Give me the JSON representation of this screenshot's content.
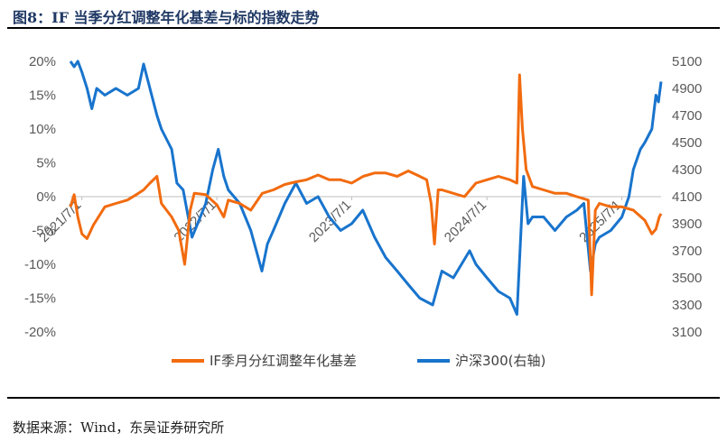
{
  "header": {
    "title": "图8：IF 当季分红调整年化基差与标的指数走势"
  },
  "footer": {
    "source": "数据来源：Wind，东吴证券研究所"
  },
  "colors": {
    "basis": "#F26B0F",
    "index": "#1874CD",
    "tick_text": "#595959",
    "title": "#1F3864"
  },
  "chart_data": {
    "type": "line",
    "title": "图8：IF 当季分红调整年化基差与标的指数走势",
    "x_range": [
      "2021-05-31",
      "2025-10-15"
    ],
    "x_ticks": [
      "2021/7/1",
      "2022/7/1",
      "2023/7/1",
      "2024/7/1",
      "2025/7/1"
    ],
    "y_left": {
      "ylim": [
        -0.2,
        0.2
      ],
      "ticks": [
        "20%",
        "15%",
        "10%",
        "5%",
        "0%",
        "-5%",
        "-10%",
        "-15%",
        "-20%"
      ]
    },
    "y_right": {
      "ylim": [
        3100,
        5100
      ],
      "ticks": [
        "5100",
        "4900",
        "4700",
        "4500",
        "4300",
        "4100",
        "3900",
        "3700",
        "3500",
        "3300",
        "3100"
      ]
    },
    "legend": "bottom-center",
    "grid": false,
    "series": [
      {
        "name": "IF季月分红调整年化基差",
        "axis": "left",
        "points": [
          [
            "2021-05-31",
            -0.015
          ],
          [
            "2021-06-10",
            0.003
          ],
          [
            "2021-06-20",
            -0.03
          ],
          [
            "2021-07-01",
            -0.055
          ],
          [
            "2021-07-15",
            -0.062
          ],
          [
            "2021-08-01",
            -0.042
          ],
          [
            "2021-09-01",
            -0.015
          ],
          [
            "2021-10-01",
            -0.01
          ],
          [
            "2021-11-01",
            -0.005
          ],
          [
            "2021-12-01",
            0.005
          ],
          [
            "2021-12-15",
            0.01
          ],
          [
            "2022-01-01",
            0.02
          ],
          [
            "2022-01-20",
            0.03
          ],
          [
            "2022-02-01",
            -0.01
          ],
          [
            "2022-03-01",
            -0.03
          ],
          [
            "2022-03-20",
            -0.05
          ],
          [
            "2022-04-05",
            -0.1
          ],
          [
            "2022-04-20",
            -0.02
          ],
          [
            "2022-05-01",
            0.005
          ],
          [
            "2022-06-01",
            0.003
          ],
          [
            "2022-07-01",
            -0.012
          ],
          [
            "2022-07-20",
            -0.03
          ],
          [
            "2022-08-01",
            -0.005
          ],
          [
            "2022-09-01",
            -0.01
          ],
          [
            "2022-10-01",
            -0.02
          ],
          [
            "2022-11-01",
            0.005
          ],
          [
            "2022-12-01",
            0.01
          ],
          [
            "2023-01-01",
            0.018
          ],
          [
            "2023-02-01",
            0.022
          ],
          [
            "2023-03-01",
            0.025
          ],
          [
            "2023-04-01",
            0.032
          ],
          [
            "2023-05-01",
            0.025
          ],
          [
            "2023-06-01",
            0.025
          ],
          [
            "2023-07-01",
            0.02
          ],
          [
            "2023-08-01",
            0.03
          ],
          [
            "2023-09-01",
            0.035
          ],
          [
            "2023-10-01",
            0.035
          ],
          [
            "2023-11-01",
            0.03
          ],
          [
            "2023-12-01",
            0.038
          ],
          [
            "2024-01-01",
            0.03
          ],
          [
            "2024-01-20",
            0.025
          ],
          [
            "2024-02-01",
            -0.01
          ],
          [
            "2024-02-10",
            -0.07
          ],
          [
            "2024-02-20",
            0.01
          ],
          [
            "2024-03-01",
            0.01
          ],
          [
            "2024-04-01",
            0.005
          ],
          [
            "2024-05-01",
            0.0
          ],
          [
            "2024-06-01",
            0.02
          ],
          [
            "2024-07-01",
            0.025
          ],
          [
            "2024-08-01",
            0.03
          ],
          [
            "2024-09-01",
            0.025
          ],
          [
            "2024-09-20",
            0.02
          ],
          [
            "2024-09-27",
            0.18
          ],
          [
            "2024-10-05",
            0.1
          ],
          [
            "2024-10-15",
            0.04
          ],
          [
            "2024-11-01",
            0.015
          ],
          [
            "2024-12-01",
            0.01
          ],
          [
            "2025-01-01",
            0.005
          ],
          [
            "2025-02-01",
            0.005
          ],
          [
            "2025-03-01",
            0.0
          ],
          [
            "2025-04-01",
            -0.005
          ],
          [
            "2025-04-10",
            -0.145
          ],
          [
            "2025-04-20",
            -0.02
          ],
          [
            "2025-05-01",
            -0.01
          ],
          [
            "2025-06-01",
            -0.015
          ],
          [
            "2025-07-01",
            -0.015
          ],
          [
            "2025-08-01",
            -0.02
          ],
          [
            "2025-09-01",
            -0.035
          ],
          [
            "2025-09-20",
            -0.055
          ],
          [
            "2025-10-01",
            -0.048
          ],
          [
            "2025-10-10",
            -0.03
          ],
          [
            "2025-10-15",
            -0.025
          ]
        ]
      },
      {
        "name": "沪深300(右轴)",
        "axis": "right",
        "points": [
          [
            "2021-05-31",
            5100
          ],
          [
            "2021-06-10",
            5060
          ],
          [
            "2021-06-20",
            5100
          ],
          [
            "2021-07-01",
            5020
          ],
          [
            "2021-07-15",
            4900
          ],
          [
            "2021-07-28",
            4750
          ],
          [
            "2021-08-10",
            4900
          ],
          [
            "2021-09-01",
            4850
          ],
          [
            "2021-10-01",
            4900
          ],
          [
            "2021-11-01",
            4850
          ],
          [
            "2021-12-01",
            4900
          ],
          [
            "2021-12-15",
            5080
          ],
          [
            "2022-01-01",
            4900
          ],
          [
            "2022-01-20",
            4700
          ],
          [
            "2022-02-01",
            4600
          ],
          [
            "2022-03-01",
            4450
          ],
          [
            "2022-03-15",
            4200
          ],
          [
            "2022-04-01",
            4150
          ],
          [
            "2022-04-25",
            3800
          ],
          [
            "2022-05-10",
            3900
          ],
          [
            "2022-06-01",
            4050
          ],
          [
            "2022-06-20",
            4300
          ],
          [
            "2022-07-05",
            4450
          ],
          [
            "2022-07-20",
            4250
          ],
          [
            "2022-08-01",
            4150
          ],
          [
            "2022-09-01",
            4050
          ],
          [
            "2022-10-01",
            3850
          ],
          [
            "2022-10-31",
            3550
          ],
          [
            "2022-11-15",
            3750
          ],
          [
            "2022-12-01",
            3850
          ],
          [
            "2023-01-01",
            4050
          ],
          [
            "2023-01-31",
            4200
          ],
          [
            "2023-03-01",
            4050
          ],
          [
            "2023-04-01",
            4100
          ],
          [
            "2023-05-01",
            3950
          ],
          [
            "2023-06-01",
            3850
          ],
          [
            "2023-07-01",
            3900
          ],
          [
            "2023-07-31",
            4000
          ],
          [
            "2023-09-01",
            3800
          ],
          [
            "2023-10-01",
            3650
          ],
          [
            "2023-11-01",
            3550
          ],
          [
            "2023-12-01",
            3450
          ],
          [
            "2024-01-01",
            3350
          ],
          [
            "2024-02-05",
            3300
          ],
          [
            "2024-02-20",
            3450
          ],
          [
            "2024-03-01",
            3550
          ],
          [
            "2024-04-01",
            3500
          ],
          [
            "2024-05-15",
            3700
          ],
          [
            "2024-06-01",
            3600
          ],
          [
            "2024-07-01",
            3500
          ],
          [
            "2024-08-01",
            3400
          ],
          [
            "2024-09-01",
            3350
          ],
          [
            "2024-09-20",
            3230
          ],
          [
            "2024-10-08",
            4250
          ],
          [
            "2024-10-20",
            3900
          ],
          [
            "2024-11-01",
            3950
          ],
          [
            "2024-12-01",
            3950
          ],
          [
            "2025-01-01",
            3850
          ],
          [
            "2025-02-01",
            3950
          ],
          [
            "2025-03-01",
            4000
          ],
          [
            "2025-03-20",
            4050
          ],
          [
            "2025-04-07",
            3550
          ],
          [
            "2025-04-20",
            3750
          ],
          [
            "2025-05-01",
            3800
          ],
          [
            "2025-06-01",
            3850
          ],
          [
            "2025-07-01",
            3950
          ],
          [
            "2025-07-20",
            4100
          ],
          [
            "2025-08-01",
            4300
          ],
          [
            "2025-08-20",
            4450
          ],
          [
            "2025-09-01",
            4500
          ],
          [
            "2025-09-20",
            4600
          ],
          [
            "2025-10-01",
            4850
          ],
          [
            "2025-10-08",
            4800
          ],
          [
            "2025-10-15",
            4950
          ]
        ]
      }
    ]
  }
}
